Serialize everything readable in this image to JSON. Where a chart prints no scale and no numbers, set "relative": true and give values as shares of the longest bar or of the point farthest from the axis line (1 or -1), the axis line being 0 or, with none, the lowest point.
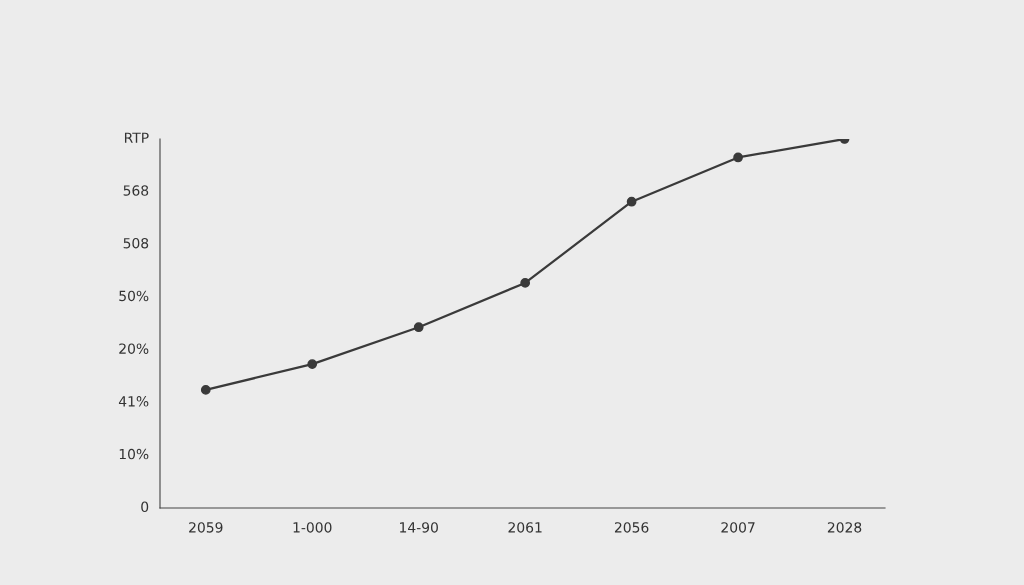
{
  "chart_data": {
    "type": "line",
    "categories": [
      "2059",
      "1-000",
      "14-90",
      "2061",
      "2056",
      "2007",
      "2028"
    ],
    "series": [
      {
        "color": "#3a3a3a",
        "values": [
          0.32,
          0.39,
          0.49,
          0.61,
          0.83,
          0.95,
          1.0
        ]
      }
    ],
    "relative": true,
    "annotations": [
      "RTP",
      "568",
      "508",
      "50%",
      "20%",
      "41%",
      "10%",
      "0"
    ],
    "marker": "circle",
    "line_style": "solid",
    "grid": false
  }
}
